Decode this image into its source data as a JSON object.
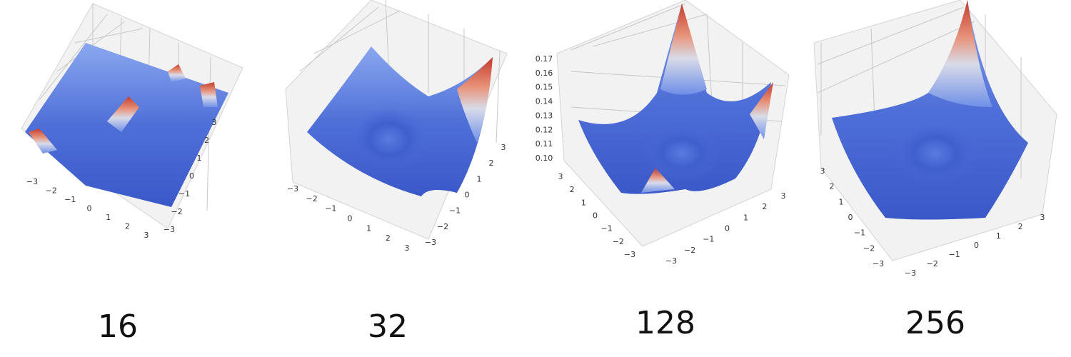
{
  "panels": [
    {
      "caption": "16",
      "x_ticks": [
        "−3",
        "−2",
        "−1",
        "0",
        "1",
        "2",
        "3"
      ],
      "y_ticks": [
        "−3",
        "−2",
        "−1",
        "0",
        "1",
        "2",
        "3"
      ]
    },
    {
      "caption": "32",
      "x_ticks": [
        "−3",
        "−2",
        "−1",
        "0",
        "1",
        "2",
        "3"
      ],
      "y_ticks": [
        "−3",
        "−2",
        "−1",
        "0",
        "1",
        "2",
        "3"
      ]
    },
    {
      "caption": "128",
      "x_ticks": [
        "−3",
        "−2",
        "−1",
        "0",
        "1",
        "2",
        "3"
      ],
      "y_ticks": [
        "3",
        "2",
        "1",
        "0",
        "−1",
        "−2",
        "−3"
      ],
      "z_ticks": [
        "0.17",
        "0.16",
        "0.15",
        "0.14",
        "0.13",
        "0.12",
        "0.11",
        "0.10"
      ]
    },
    {
      "caption": "256",
      "x_ticks": [
        "−3",
        "−2",
        "−1",
        "0",
        "1",
        "2",
        "3"
      ],
      "y_ticks": [
        "3",
        "2",
        "1",
        "0",
        "−1",
        "−2",
        "−3"
      ]
    }
  ]
}
